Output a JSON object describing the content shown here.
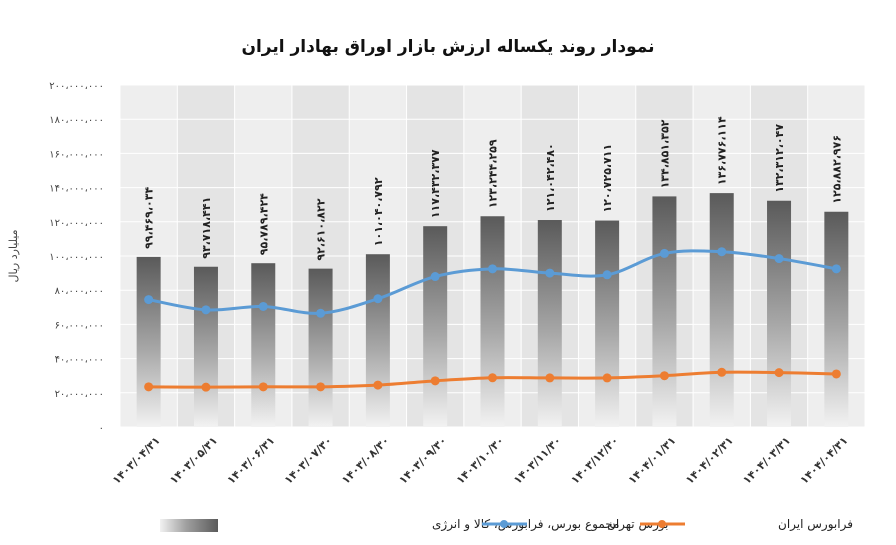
{
  "chart_data": {
    "type": "bar",
    "title": "نمودار روند یکساله ارزش بازار اوراق بهادار ایران",
    "ylabel": "میلیارد ریال",
    "ylim": [
      0,
      200000000
    ],
    "yticks": [
      0,
      20000000,
      40000000,
      60000000,
      80000000,
      100000000,
      120000000,
      140000000,
      160000000,
      180000000,
      200000000
    ],
    "ytick_labels": [
      "۰",
      "۲۰،۰۰۰،۰۰۰",
      "۴۰،۰۰۰،۰۰۰",
      "۶۰،۰۰۰،۰۰۰",
      "۸۰،۰۰۰،۰۰۰",
      "۱۰۰،۰۰۰،۰۰۰",
      "۱۲۰،۰۰۰،۰۰۰",
      "۱۴۰،۰۰۰،۰۰۰",
      "۱۶۰،۰۰۰،۰۰۰",
      "۱۸۰،۰۰۰،۰۰۰",
      "۲۰۰،۰۰۰،۰۰۰"
    ],
    "categories": [
      "۱۴۰۳/۰۴/۳۱",
      "۱۴۰۳/۰۵/۳۱",
      "۱۴۰۳/۰۶/۳۱",
      "۱۴۰۳/۰۷/۳۰",
      "۱۴۰۳/۰۸/۳۰",
      "۱۴۰۳/۰۹/۳۰",
      "۱۴۰۳/۱۰/۳۰",
      "۱۴۰۳/۱۱/۳۰",
      "۱۴۰۳/۱۲/۳۰",
      "۱۴۰۴/۰۱/۳۱",
      "۱۴۰۴/۰۲/۳۱",
      "۱۴۰۴/۰۳/۳۱",
      "۱۴۰۴/۰۴/۳۱"
    ],
    "grid": true,
    "legend_position": "bottom",
    "series": [
      {
        "name": "مجموع بورس، فرابورس، کالا و انرژی",
        "kind": "bar",
        "values": [
          99469034,
          93718441,
          95789424,
          92610822,
          101040792,
          117432377,
          123244259,
          121042480,
          120725711,
          134851352,
          136776114,
          132312047,
          125882976
        ],
        "labels": [
          "۹۹،۴۶۹،۰۳۴",
          "۹۳،۷۱۸،۴۴۱",
          "۹۵،۷۸۹،۴۲۴",
          "۹۲،۶۱۰،۸۲۲",
          "۱۰۱،۰۴۰،۷۹۲",
          "۱۱۷،۴۳۲،۳۷۷",
          "۱۲۳،۲۴۴،۲۵۹",
          "۱۲۱،۰۴۲،۴۸۰",
          "۱۲۰،۷۲۵،۷۱۱",
          "۱۳۴،۸۵۱،۳۵۲",
          "۱۳۶،۷۷۶،۱۱۴",
          "۱۳۲،۳۱۲،۰۴۷",
          "۱۲۵،۸۸۲،۹۷۶"
        ],
        "color": "#8a8a8a"
      },
      {
        "name": "بورس تهران",
        "kind": "line",
        "values": [
          74500000,
          68500000,
          70500000,
          66500000,
          75000000,
          88000000,
          92500000,
          90000000,
          89000000,
          101500000,
          102500000,
          98500000,
          92500000
        ],
        "color": "#5b9bd5"
      },
      {
        "name": "فرابورس ایران",
        "kind": "line",
        "values": [
          23500000,
          23300000,
          23500000,
          23500000,
          24500000,
          27000000,
          28800000,
          28700000,
          28700000,
          30000000,
          32000000,
          31800000,
          31000000
        ],
        "color": "#ed7d31"
      }
    ]
  }
}
